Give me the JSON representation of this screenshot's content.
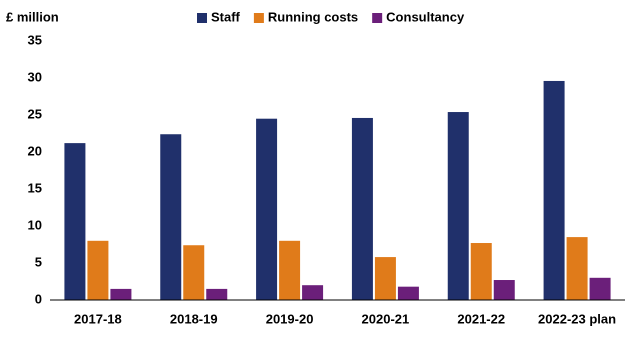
{
  "chart_data": {
    "type": "bar",
    "y_label": "£ million",
    "categories": [
      "2017-18",
      "2018-19",
      "2019-20",
      "2020-21",
      "2021-22",
      "2022-23 plan"
    ],
    "series": [
      {
        "name": "Staff",
        "color": "#20306b",
        "values": [
          21.2,
          22.4,
          24.5,
          24.6,
          25.4,
          29.6
        ]
      },
      {
        "name": "Running costs",
        "color": "#e07b1a",
        "values": [
          8.0,
          7.4,
          8.0,
          5.8,
          7.7,
          8.5
        ]
      },
      {
        "name": "Consultancy",
        "color": "#6b1f7a",
        "values": [
          1.5,
          1.5,
          2.0,
          1.8,
          2.7,
          3.0
        ]
      }
    ],
    "ylim": [
      0,
      35
    ],
    "yticks": [
      0,
      5,
      10,
      15,
      20,
      25,
      30,
      35
    ],
    "grid": false
  }
}
